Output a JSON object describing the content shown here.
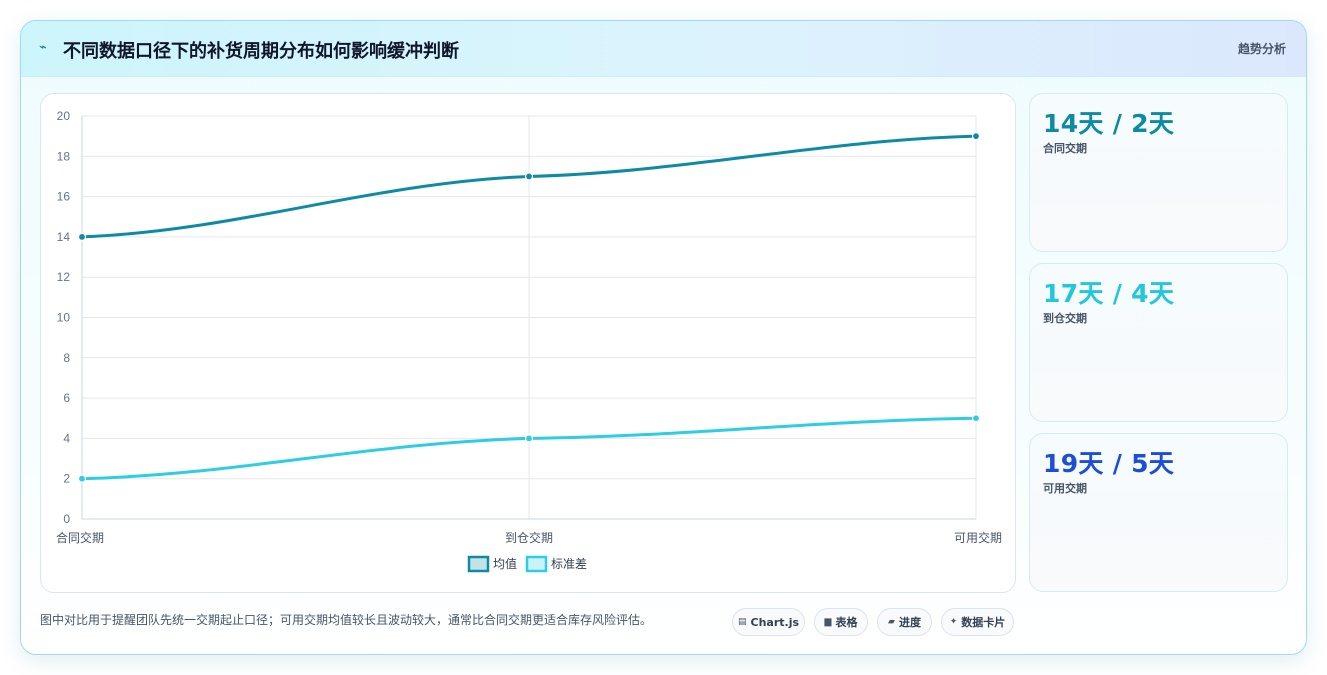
{
  "header": {
    "icon": "bolt-icon",
    "title": "不同数据口径下的补货周期分布如何影响缓冲判断",
    "badge": "趋势分析"
  },
  "chart_data": {
    "type": "line",
    "categories": [
      "合同交期",
      "到仓交期",
      "可用交期"
    ],
    "series": [
      {
        "name": "均值",
        "values": [
          14,
          17,
          19
        ],
        "color": "#0e8ba3"
      },
      {
        "name": "标准差",
        "values": [
          2,
          4,
          5
        ],
        "color": "#2ecde4"
      }
    ],
    "ylim": [
      0,
      20
    ],
    "yticks": [
      0,
      2,
      4,
      6,
      8,
      10,
      12,
      14,
      16,
      18,
      20
    ],
    "grid": true,
    "legend": "bottom"
  },
  "stats": [
    {
      "value": "14天 / 2天",
      "label": "合同交期",
      "color": "#0e8ba3"
    },
    {
      "value": "17天 / 4天",
      "label": "到仓交期",
      "color": "#22c6dd"
    },
    {
      "value": "19天 / 5天",
      "label": "可用交期",
      "color": "#1d4ed8"
    }
  ],
  "footnote": "图中对比用于提醒团队先统一交期起止口径；可用交期均值较长且波动较大，通常比合同交期更适合库存风险评估。",
  "chips": [
    {
      "icon": "chart-icon",
      "label": "Chart.js"
    },
    {
      "icon": "table-icon",
      "label": "表格"
    },
    {
      "icon": "progress-icon",
      "label": "进度"
    },
    {
      "icon": "sparkle-icon",
      "label": "数据卡片"
    }
  ]
}
